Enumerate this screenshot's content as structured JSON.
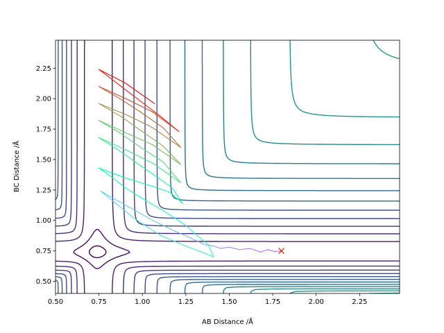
{
  "chart_data": {
    "type": "contour",
    "title": "",
    "xlabel": "AB Distance /Å",
    "ylabel": "BC Distance /Å",
    "xlim": [
      0.5,
      2.48
    ],
    "ylim": [
      0.4,
      2.48
    ],
    "xticks": [
      0.5,
      0.75,
      1.0,
      1.25,
      1.5,
      1.75,
      2.0,
      2.25
    ],
    "xtick_labels": [
      "0.50",
      "0.75",
      "1.00",
      "1.25",
      "1.50",
      "1.75",
      "2.00",
      "2.25"
    ],
    "yticks": [
      0.5,
      0.75,
      1.0,
      1.25,
      1.5,
      1.75,
      2.0,
      2.25
    ],
    "ytick_labels": [
      "0.50",
      "0.75",
      "1.00",
      "1.25",
      "1.50",
      "1.75",
      "2.00",
      "2.25"
    ],
    "grid": false,
    "colormap": "viridis",
    "contour_level_count": 24,
    "trajectory": {
      "color_scheme": "rainbow",
      "end_marker": "x",
      "end_marker_color": "#d62728",
      "points": [
        [
          1.8,
          0.75
        ],
        [
          1.76,
          0.745
        ],
        [
          1.72,
          0.76
        ],
        [
          1.68,
          0.74
        ],
        [
          1.62,
          0.77
        ],
        [
          1.56,
          0.76
        ],
        [
          1.5,
          0.78
        ],
        [
          1.45,
          0.77
        ],
        [
          1.41,
          0.79
        ],
        [
          1.36,
          0.8
        ],
        [
          1.3,
          0.84
        ],
        [
          1.24,
          0.88
        ],
        [
          1.16,
          0.93
        ],
        [
          1.06,
          1.0
        ],
        [
          0.96,
          1.08
        ],
        [
          0.86,
          1.16
        ],
        [
          0.76,
          1.24
        ],
        [
          0.95,
          1.02
        ],
        [
          1.1,
          0.88
        ],
        [
          1.25,
          0.79
        ],
        [
          1.36,
          0.73
        ],
        [
          1.41,
          0.7
        ],
        [
          1.38,
          0.8
        ],
        [
          1.32,
          0.87
        ],
        [
          1.24,
          0.97
        ],
        [
          1.12,
          1.08
        ],
        [
          1.0,
          1.18
        ],
        [
          0.9,
          1.27
        ],
        [
          0.82,
          1.36
        ],
        [
          0.75,
          1.43
        ],
        [
          0.92,
          1.34
        ],
        [
          1.06,
          1.28
        ],
        [
          1.16,
          1.23
        ],
        [
          1.23,
          1.14
        ],
        [
          1.17,
          1.27
        ],
        [
          1.06,
          1.38
        ],
        [
          0.96,
          1.48
        ],
        [
          0.86,
          1.58
        ],
        [
          0.75,
          1.68
        ],
        [
          0.92,
          1.57
        ],
        [
          1.06,
          1.47
        ],
        [
          1.22,
          1.31
        ],
        [
          1.12,
          1.48
        ],
        [
          0.99,
          1.6
        ],
        [
          0.87,
          1.72
        ],
        [
          0.75,
          1.82
        ],
        [
          0.92,
          1.71
        ],
        [
          1.06,
          1.62
        ],
        [
          1.22,
          1.46
        ],
        [
          1.12,
          1.61
        ],
        [
          0.99,
          1.74
        ],
        [
          0.87,
          1.86
        ],
        [
          0.75,
          1.96
        ],
        [
          0.92,
          1.86
        ],
        [
          1.06,
          1.76
        ],
        [
          1.22,
          1.6
        ],
        [
          1.12,
          1.76
        ],
        [
          0.99,
          1.89
        ],
        [
          0.87,
          2.0
        ],
        [
          0.75,
          2.1
        ],
        [
          0.92,
          1.99
        ],
        [
          1.06,
          1.89
        ],
        [
          1.21,
          1.73
        ],
        [
          1.1,
          1.86
        ],
        [
          0.97,
          2.0
        ],
        [
          0.86,
          2.12
        ],
        [
          0.75,
          2.24
        ],
        [
          0.9,
          2.13
        ],
        [
          1.07,
          1.96
        ]
      ]
    }
  }
}
